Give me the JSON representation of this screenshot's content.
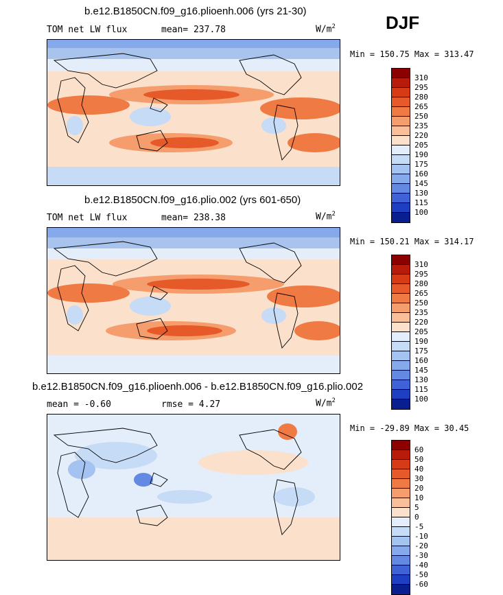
{
  "season": "DJF",
  "panels": [
    {
      "title": "b.e12.B1850CN.f09_g16.plioenh.006 (yrs 21-30)",
      "left_label": "TOM net LW flux",
      "mid_label": "mean= 237.78",
      "units": "W/m",
      "units_exp": "2",
      "minmax": "Min = 150.75 Max = 313.47",
      "levels": [
        "310",
        "295",
        "280",
        "265",
        "250",
        "235",
        "220",
        "205",
        "190",
        "175",
        "160",
        "145",
        "130",
        "115",
        "100"
      ]
    },
    {
      "title": "b.e12.B1850CN.f09_g16.plio.002 (yrs 601-650)",
      "left_label": "TOM net LW flux",
      "mid_label": "mean= 238.38",
      "units": "W/m",
      "units_exp": "2",
      "minmax": "Min = 150.21 Max = 314.17",
      "levels": [
        "310",
        "295",
        "280",
        "265",
        "250",
        "235",
        "220",
        "205",
        "190",
        "175",
        "160",
        "145",
        "130",
        "115",
        "100"
      ]
    },
    {
      "title": "b.e12.B1850CN.f09_g16.plioenh.006 - b.e12.B1850CN.f09_g16.plio.002",
      "left_label": "mean =  -0.60",
      "mid_label": "rmse =   4.27",
      "units": "W/m",
      "units_exp": "2",
      "minmax": "Min = -29.89 Max =  30.45",
      "levels": [
        "60",
        "50",
        "40",
        "30",
        "20",
        "10",
        "5",
        "0",
        "-5",
        "-10",
        "-20",
        "-30",
        "-40",
        "-50",
        "-60"
      ]
    }
  ],
  "colors": {
    "scale16": [
      "#8b0000",
      "#b81b0a",
      "#d63a17",
      "#e65a2a",
      "#ef7a44",
      "#f59d6c",
      "#f8bf9a",
      "#fbe0cc",
      "#e4eefa",
      "#c6dbf6",
      "#a5c3f0",
      "#85a9ea",
      "#6489e2",
      "#3f62d6",
      "#1f3fc2",
      "#0a1f8f"
    ],
    "ocean_high": "#a8c4ee",
    "diff_base": "#eef3fb"
  }
}
